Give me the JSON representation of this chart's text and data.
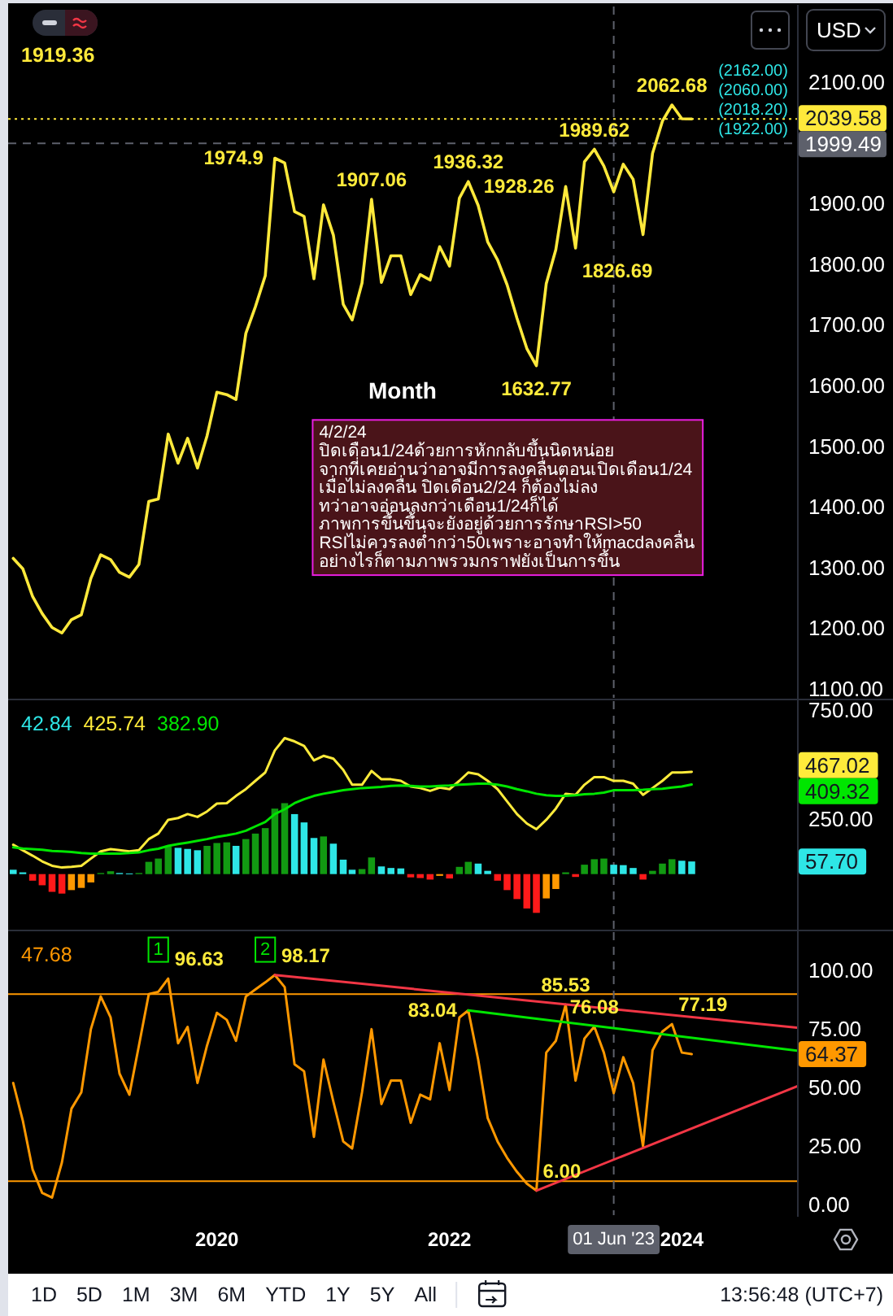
{
  "chart_data": [
    {
      "type": "line",
      "x": [
        "2018-04",
        "2018-05",
        "2018-06",
        "2018-07",
        "2018-08",
        "2018-09",
        "2018-10",
        "2018-11",
        "2018-12",
        "2019-01",
        "2019-02",
        "2019-03",
        "2019-04",
        "2019-05",
        "2019-06",
        "2019-07",
        "2019-08",
        "2019-09",
        "2019-10",
        "2019-11",
        "2019-12",
        "2020-01",
        "2020-02",
        "2020-03",
        "2020-04",
        "2020-05",
        "2020-06",
        "2020-07",
        "2020-08",
        "2020-09",
        "2020-10",
        "2020-11",
        "2020-12",
        "2021-01",
        "2021-02",
        "2021-03",
        "2021-04",
        "2021-05",
        "2021-06",
        "2021-07",
        "2021-08",
        "2021-09",
        "2021-10",
        "2021-11",
        "2021-12",
        "2022-01",
        "2022-02",
        "2022-03",
        "2022-04",
        "2022-05",
        "2022-06",
        "2022-07",
        "2022-08",
        "2022-09",
        "2022-10",
        "2022-11",
        "2022-12",
        "2023-01",
        "2023-02",
        "2023-03",
        "2023-04",
        "2023-05",
        "2023-06",
        "2023-07",
        "2023-08",
        "2023-09",
        "2023-10",
        "2023-11",
        "2023-12",
        "2024-01",
        "2024-02"
      ],
      "series": [
        {
          "color": "#ffe93b",
          "values": [
            1315,
            1298,
            1252,
            1224,
            1201,
            1192,
            1214,
            1222,
            1282,
            1321,
            1313,
            1292,
            1284,
            1305,
            1409,
            1413,
            1520,
            1472,
            1513,
            1464,
            1517,
            1589,
            1585,
            1577,
            1686,
            1730,
            1781,
            1974.9,
            1967,
            1887,
            1879,
            1776,
            1898,
            1848,
            1734,
            1708,
            1769,
            1907.06,
            1770,
            1814,
            1814,
            1750,
            1783,
            1774,
            1829,
            1797,
            1909,
            1936.32,
            1897,
            1837,
            1807,
            1766,
            1711,
            1661,
            1632.77,
            1768,
            1824,
            1928.26,
            1826.69,
            1969,
            1989.62,
            1962,
            1919.36,
            1965,
            1940,
            1849,
            1983,
            2036,
            2062.68,
            2040,
            2039.58
          ],
          "value_labels": [
            null,
            null,
            null,
            null,
            null,
            null,
            null,
            null,
            null,
            null,
            null,
            null,
            null,
            null,
            null,
            null,
            null,
            null,
            null,
            null,
            null,
            null,
            null,
            null,
            null,
            null,
            null,
            "1974.9",
            null,
            null,
            null,
            null,
            null,
            null,
            null,
            null,
            null,
            "1907.06",
            null,
            null,
            null,
            null,
            null,
            null,
            null,
            null,
            null,
            "1936.32",
            null,
            null,
            null,
            null,
            null,
            null,
            "1632.77",
            null,
            null,
            "1928.26",
            "1826.69",
            null,
            "1989.62",
            null,
            null,
            null,
            null,
            null,
            null,
            null,
            "2062.68",
            null,
            null
          ]
        }
      ],
      "xlim": [
        "2018-03-16",
        "2024-12-28"
      ],
      "ylim": [
        1085,
        2225
      ],
      "yticks": [
        {
          "value": 1100,
          "label": "1100.00"
        },
        {
          "value": 1200,
          "label": "1200.00"
        },
        {
          "value": 1300,
          "label": "1300.00"
        },
        {
          "value": 1400,
          "label": "1400.00"
        },
        {
          "value": 1500,
          "label": "1500.00"
        },
        {
          "value": 1600,
          "label": "1600.00"
        },
        {
          "value": 1700,
          "label": "1700.00"
        },
        {
          "value": 1800,
          "label": "1800.00"
        },
        {
          "value": 1900,
          "label": "1900.00"
        },
        {
          "value": 2100,
          "label": "2100.00"
        }
      ],
      "tick_labels": "y",
      "ref_lines": [
        {
          "axis": "y",
          "value": 2039.58,
          "label": "2039.58",
          "color": "#ffe93b",
          "line_style": "dotted"
        },
        {
          "axis": "y",
          "value": 1999.49,
          "label": "1999.49",
          "color": "#5d606b",
          "line_style": "dashed"
        },
        {
          "axis": "x",
          "value": "2023-06-01",
          "color": "#5d606b",
          "line_style": "dashed"
        }
      ],
      "annotations": [
        "1919.36",
        "Month",
        "4/2/24\nปิดเดือน1/24ด้วยการหักกลับขึ้นนิดหน่อย\nจากที่เคยอ่านว่าอาจมีการลงคลื่นตอนเปิดเดือน1/24\nเมื่อไม่ลงคลื่น ปิดเดือน2/24 ก็ต้องไม่ลง\nทว่าอาจอ่อนลงกว่าเดือน1/24ก็ได้\nภาพการขึ้นขึ้นจะยังอยู่ด้วยการรักษาRSI>50\nRSIไม่ควรลงต่ำกว่า50เพราะอาจทำให้macdลงคลื่น\nอย่างไรก็ตามภาพรวมกราฟยังเป็นการขึ้น",
        "USD",
        "(2162.00)",
        "(2060.00)",
        "(2018.20)",
        "(1922.00)"
      ]
    },
    {
      "type": "line",
      "x": [
        "2018-04",
        "2018-05",
        "2018-06",
        "2018-07",
        "2018-08",
        "2018-09",
        "2018-10",
        "2018-11",
        "2018-12",
        "2019-01",
        "2019-02",
        "2019-03",
        "2019-04",
        "2019-05",
        "2019-06",
        "2019-07",
        "2019-08",
        "2019-09",
        "2019-10",
        "2019-11",
        "2019-12",
        "2020-01",
        "2020-02",
        "2020-03",
        "2020-04",
        "2020-05",
        "2020-06",
        "2020-07",
        "2020-08",
        "2020-09",
        "2020-10",
        "2020-11",
        "2020-12",
        "2021-01",
        "2021-02",
        "2021-03",
        "2021-04",
        "2021-05",
        "2021-06",
        "2021-07",
        "2021-08",
        "2021-09",
        "2021-10",
        "2021-11",
        "2021-12",
        "2022-01",
        "2022-02",
        "2022-03",
        "2022-04",
        "2022-05",
        "2022-06",
        "2022-07",
        "2022-08",
        "2022-09",
        "2022-10",
        "2022-11",
        "2022-12",
        "2023-01",
        "2023-02",
        "2023-03",
        "2023-04",
        "2023-05",
        "2023-06",
        "2023-07",
        "2023-08",
        "2023-09",
        "2023-10",
        "2023-11",
        "2023-12",
        "2024-01",
        "2024-02"
      ],
      "series": [
        {
          "type": "bar",
          "colors": [
            "#2ee6e6",
            "#2ee6e6",
            "#ff1a1a",
            "#ff1a1a",
            "#ff1a1a",
            "#ff1a1a",
            "#ff9800",
            "#ff9800",
            "#ff9800",
            "#129a12",
            "#129a12",
            "#2ee6e6",
            "#2ee6e6",
            "#129a12",
            "#129a12",
            "#129a12",
            "#129a12",
            "#2ee6e6",
            "#2ee6e6",
            "#2ee6e6",
            "#129a12",
            "#129a12",
            "#129a12",
            "#2ee6e6",
            "#129a12",
            "#129a12",
            "#129a12",
            "#129a12",
            "#129a12",
            "#2ee6e6",
            "#2ee6e6",
            "#2ee6e6",
            "#129a12",
            "#2ee6e6",
            "#2ee6e6",
            "#2ee6e6",
            "#129a12",
            "#129a12",
            "#2ee6e6",
            "#2ee6e6",
            "#2ee6e6",
            "#ff1a1a",
            "#ff1a1a",
            "#ff1a1a",
            "#ff9800",
            "#ff1a1a",
            "#129a12",
            "#129a12",
            "#2ee6e6",
            "#2ee6e6",
            "#ff1a1a",
            "#ff1a1a",
            "#ff1a1a",
            "#ff1a1a",
            "#ff1a1a",
            "#ff9800",
            "#ff9800",
            "#129a12",
            "#ff1a1a",
            "#129a12",
            "#129a12",
            "#129a12",
            "#2ee6e6",
            "#2ee6e6",
            "#2ee6e6",
            "#ff1a1a",
            "#129a12",
            "#129a12",
            "#129a12",
            "#2ee6e6",
            "#2ee6e6"
          ],
          "values": [
            20,
            8,
            -30,
            -51,
            -81,
            -89,
            -73,
            -63,
            -38,
            5,
            13,
            5,
            3,
            5,
            56,
            71,
            125,
            120,
            115,
            109,
            129,
            142,
            145,
            129,
            160,
            185,
            210,
            299,
            324,
            274,
            236,
            165,
            172,
            139,
            66,
            20,
            23,
            76,
            35,
            28,
            26,
            -15,
            -18,
            -25,
            -8,
            -20,
            33,
            56,
            48,
            15,
            -30,
            -73,
            -114,
            -157,
            -177,
            -111,
            -68,
            8,
            -13,
            43,
            68,
            71,
            42.84,
            41,
            28,
            -25,
            15,
            48,
            68,
            61,
            57.7
          ]
        },
        {
          "color": "#ffeb3b",
          "values": [
            134,
            109,
            84,
            58,
            38,
            30,
            33,
            38,
            71,
            104,
            114,
            109,
            104,
            109,
            160,
            185,
            248,
            256,
            274,
            261,
            286,
            322,
            324,
            357,
            388,
            426,
            464,
            565,
            621,
            606,
            585,
            519,
            540,
            527,
            476,
            408,
            408,
            471,
            433,
            433,
            426,
            400,
            393,
            380,
            395,
            388,
            426,
            464,
            456,
            426,
            388,
            332,
            274,
            231,
            205,
            248,
            299,
            367,
            362,
            408,
            443,
            443,
            425.74,
            426,
            413,
            362,
            393,
            426,
            464,
            464,
            467.02
          ]
        },
        {
          "color": "#00e600",
          "values": [
            122,
            117,
            114,
            111,
            106,
            104,
            101,
            96,
            94,
            94,
            94,
            94,
            96,
            99,
            109,
            116,
            129,
            137,
            144,
            152,
            160,
            170,
            177,
            185,
            198,
            218,
            238,
            274,
            296,
            324,
            342,
            357,
            367,
            375,
            383,
            388,
            393,
            395,
            398,
            403,
            405,
            403,
            400,
            400,
            403,
            405,
            408,
            410,
            413,
            413,
            408,
            400,
            388,
            378,
            367,
            360,
            357,
            357,
            360,
            365,
            367,
            372,
            382.9,
            383,
            383,
            385,
            388,
            390,
            395,
            400,
            409.32
          ]
        }
      ],
      "xlim": [
        "2018-03-16",
        "2024-12-28"
      ],
      "ylim": [
        -250,
        790
      ],
      "yticks": [
        {
          "value": 250,
          "label": "250.00"
        },
        {
          "value": 750,
          "label": "750.00"
        }
      ],
      "tick_labels": "y",
      "ref_lines": [
        {
          "axis": "x",
          "value": "2023-06-01",
          "color": "#5d606b",
          "line_style": "dashed"
        }
      ],
      "annotations": [
        "42.84",
        "425.74",
        "382.90",
        "57.70",
        "467.02",
        "409.32"
      ]
    },
    {
      "type": "line",
      "x": [
        "2018-04",
        "2018-05",
        "2018-06",
        "2018-07",
        "2018-08",
        "2018-09",
        "2018-10",
        "2018-11",
        "2018-12",
        "2019-01",
        "2019-02",
        "2019-03",
        "2019-04",
        "2019-05",
        "2019-06",
        "2019-07",
        "2019-08",
        "2019-09",
        "2019-10",
        "2019-11",
        "2019-12",
        "2020-01",
        "2020-02",
        "2020-03",
        "2020-04",
        "2020-05",
        "2020-06",
        "2020-07",
        "2020-08",
        "2020-09",
        "2020-10",
        "2020-11",
        "2020-12",
        "2021-01",
        "2021-02",
        "2021-03",
        "2021-04",
        "2021-05",
        "2021-06",
        "2021-07",
        "2021-08",
        "2021-09",
        "2021-10",
        "2021-11",
        "2021-12",
        "2022-01",
        "2022-02",
        "2022-03",
        "2022-04",
        "2022-05",
        "2022-06",
        "2022-07",
        "2022-08",
        "2022-09",
        "2022-10",
        "2022-11",
        "2022-12",
        "2023-01",
        "2023-02",
        "2023-03",
        "2023-04",
        "2023-05",
        "2023-06",
        "2023-07",
        "2023-08",
        "2023-09",
        "2023-10",
        "2023-11",
        "2023-12",
        "2024-01",
        "2024-02"
      ],
      "series": [
        {
          "color": "#ff9800",
          "values": [
            52,
            36,
            15,
            5,
            3,
            18,
            41,
            48,
            75,
            89,
            80,
            56,
            47,
            68,
            90,
            91,
            96.63,
            69,
            76,
            52,
            68,
            82,
            79,
            70,
            89,
            92,
            95,
            98.17,
            93,
            60,
            57,
            29,
            62,
            44,
            27,
            24,
            48,
            75,
            43,
            53,
            53,
            35,
            47,
            45,
            69,
            49,
            80,
            83.04,
            62,
            37,
            27,
            20,
            14,
            9,
            6.0,
            65,
            70,
            85.53,
            53,
            71,
            76.08,
            65,
            47.68,
            63,
            52,
            25,
            66,
            74,
            77.19,
            65,
            64.37
          ],
          "value_labels": [
            null,
            null,
            null,
            null,
            null,
            null,
            null,
            null,
            null,
            null,
            null,
            null,
            null,
            null,
            null,
            null,
            "96.63",
            null,
            null,
            null,
            null,
            null,
            null,
            null,
            null,
            null,
            null,
            "98.17",
            null,
            null,
            null,
            null,
            null,
            null,
            null,
            null,
            null,
            null,
            null,
            null,
            null,
            null,
            null,
            null,
            null,
            null,
            null,
            "83.04",
            null,
            null,
            null,
            null,
            null,
            null,
            "6.00",
            null,
            null,
            "85.53",
            null,
            null,
            "76.08",
            null,
            null,
            null,
            null,
            null,
            null,
            null,
            "77.19",
            null,
            null
          ]
        },
        {
          "color": "#f23645",
          "x": [
            "2020-07",
            "2024-12-28"
          ],
          "values": [
            98.17,
            75.6
          ]
        },
        {
          "color": "#00e600",
          "x": [
            "2022-03",
            "2024-12-28"
          ],
          "values": [
            83.04,
            65.8
          ]
        },
        {
          "color": "#f23645",
          "x": [
            "2022-10",
            "2024-12-28"
          ],
          "values": [
            6.0,
            50.6
          ]
        }
      ],
      "xlim": [
        "2018-03-16",
        "2024-12-28"
      ],
      "ylim": [
        -4.5,
        116.5
      ],
      "xticks": [
        "2020",
        "2022",
        "2024"
      ],
      "yticks": [
        {
          "value": 0,
          "label": "0.00"
        },
        {
          "value": 25,
          "label": "25.00"
        },
        {
          "value": 50,
          "label": "50.00"
        },
        {
          "value": 75,
          "label": "75.00"
        },
        {
          "value": 100,
          "label": "100.00"
        }
      ],
      "ref_lines": [
        {
          "axis": "y",
          "value": 90,
          "color": "#ff9800"
        },
        {
          "axis": "y",
          "value": 10,
          "color": "#ff9800"
        },
        {
          "axis": "x",
          "value": "2023-06-01",
          "label": "01 Jun '23",
          "color": "#5d606b",
          "line_style": "dashed"
        }
      ],
      "annotations": [
        "47.68",
        "64.37",
        {
          "text": "1",
          "x": "2019-07",
          "y": 109
        },
        {
          "text": "2",
          "x": "2020-06",
          "y": 109
        }
      ]
    },
    {
      "type": "other",
      "annotations": [
        "1D",
        "5D",
        "1M",
        "3M",
        "6M",
        "YTD",
        "1Y",
        "5Y",
        "All",
        "13:56:48 (UTC+7)"
      ]
    }
  ]
}
